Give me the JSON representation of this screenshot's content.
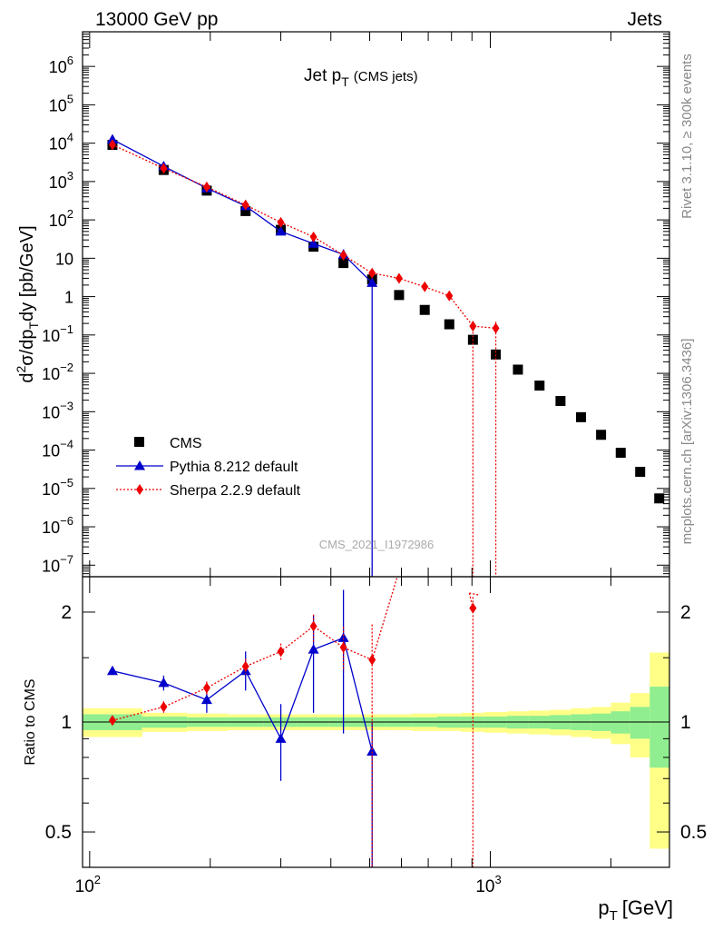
{
  "header": {
    "left": "13000 GeV pp",
    "right": "Jets"
  },
  "side": {
    "rivet": "Rivet 3.1.10, ≥ 300k events",
    "mcplots": "mcplots.cern.ch [arXiv:1306.3436]"
  },
  "analysis_id": "CMS_2021_I1972986",
  "colors": {
    "cms": "#000000",
    "pythia": "#0000cc",
    "sherpa": "#ee0000",
    "band_inner": "#90ee90",
    "band_outer": "#ffff88"
  },
  "chart_data": [
    {
      "type": "scatter",
      "title": "Jet pT (CMS jets)",
      "title_parts": {
        "main": "Jet p",
        "sub": "T",
        "suffix": "(CMS jets)"
      },
      "ylabel": "d2σ/dpTdy [pb/GeV]",
      "ylabel_parts": {
        "d": "d",
        "sup2": "2",
        "sigma": "σ/dp",
        "subT": "T",
        "dy": "dy [pb/GeV]"
      },
      "xscale": "log",
      "yscale": "log",
      "xlim": [
        96,
        2800
      ],
      "ylim": [
        5e-08,
        8000000.0
      ],
      "x_ticks": [
        {
          "value": 100,
          "base": "10",
          "exp": "2"
        },
        {
          "value": 1000,
          "base": "10",
          "exp": "3"
        }
      ],
      "y_ticks": [
        {
          "value": 1000000.0,
          "label": "10",
          "exp": "6"
        },
        {
          "value": 100000.0,
          "label": "10",
          "exp": "5"
        },
        {
          "value": 10000.0,
          "label": "10",
          "exp": "4"
        },
        {
          "value": 1000.0,
          "label": "10",
          "exp": "3"
        },
        {
          "value": 100.0,
          "label": "10",
          "exp": "2"
        },
        {
          "value": 10,
          "label": "10",
          "exp": ""
        },
        {
          "value": 1,
          "label": "1",
          "exp": ""
        },
        {
          "value": 0.1,
          "label": "10",
          "exp": "−1"
        },
        {
          "value": 0.01,
          "label": "10",
          "exp": "−2"
        },
        {
          "value": 0.001,
          "label": "10",
          "exp": "−3"
        },
        {
          "value": 0.0001,
          "label": "10",
          "exp": "−4"
        },
        {
          "value": 1e-05,
          "label": "10",
          "exp": "−5"
        },
        {
          "value": 1e-06,
          "label": "10",
          "exp": "−6"
        },
        {
          "value": 1e-07,
          "label": "10",
          "exp": "−7"
        }
      ],
      "legend": {
        "position": "bottom-left",
        "entries": [
          {
            "name": "CMS",
            "marker": "square"
          },
          {
            "name": "Pythia 8.212 default",
            "marker": "triangle"
          },
          {
            "name": "Sherpa 2.2.9 default",
            "marker": "diamond"
          }
        ]
      },
      "series": [
        {
          "name": "CMS",
          "marker": "square",
          "x": [
            114,
            153,
            196,
            245,
            300,
            362,
            430,
            507,
            592,
            686,
            790,
            905,
            1032,
            1172,
            1327,
            1497,
            1684,
            1890,
            2116,
            2366,
            2640
          ],
          "y": [
            9000,
            2000,
            580,
            170,
            55,
            20,
            7.5,
            2.8,
            1.1,
            0.45,
            0.19,
            0.075,
            0.031,
            0.0125,
            0.0048,
            0.0019,
            0.00072,
            0.00025,
            8.5e-05,
            2.7e-05,
            5.5e-06
          ]
        },
        {
          "name": "Pythia 8.212 default",
          "marker": "triangle",
          "x": [
            114,
            153,
            196,
            245,
            300,
            362,
            430,
            507
          ],
          "y": [
            12500,
            2500,
            670,
            230,
            50,
            24,
            12.5,
            2.3
          ],
          "y_low": [
            12000,
            2400,
            640,
            210,
            42,
            20,
            9,
            1e-09
          ],
          "y_high": [
            13000,
            2600,
            700,
            250,
            58,
            28,
            17,
            2.6
          ]
        },
        {
          "name": "Sherpa 2.2.9 default",
          "marker": "diamond",
          "x": [
            114,
            153,
            196,
            245,
            300,
            362,
            430,
            507,
            592,
            686,
            790,
            905,
            1032
          ],
          "y": [
            9100,
            2200,
            720,
            245,
            86,
            36,
            12,
            4.1,
            3.0,
            1.8,
            1.05,
            0.17,
            0.15
          ],
          "y_low": [
            8900,
            2150,
            700,
            235,
            82,
            33,
            10,
            3.5,
            2.8,
            1.6,
            0.9,
            1e-09,
            1e-09
          ],
          "y_high": [
            9300,
            2250,
            740,
            255,
            90,
            39,
            14,
            4.7,
            3.2,
            2.0,
            1.2,
            0.23,
            0.22
          ]
        }
      ]
    },
    {
      "type": "scatter",
      "ylabel": "Ratio to CMS",
      "xlabel": "pT [GeV]",
      "xlabel_parts": {
        "p": "p",
        "subT": "T",
        "unit": "[GeV]"
      },
      "xscale": "log",
      "yscale": "log",
      "xlim": [
        96,
        2800
      ],
      "ylim": [
        0.4,
        2.5
      ],
      "y_ticks": [
        {
          "value": 2,
          "label": "2"
        },
        {
          "value": 1,
          "label": "1"
        },
        {
          "value": 0.5,
          "label": "0.5"
        }
      ],
      "bands": {
        "edges": [
          96,
          135,
          175,
          220,
          272,
          330,
          395,
          467,
          548,
          638,
          737,
          846,
          967,
          1100,
          1247,
          1410,
          1589,
          1785,
          2000,
          2235,
          2500,
          2800
        ],
        "inner": [
          0.05,
          0.035,
          0.03,
          0.03,
          0.03,
          0.03,
          0.03,
          0.03,
          0.03,
          0.03,
          0.035,
          0.035,
          0.035,
          0.04,
          0.04,
          0.045,
          0.05,
          0.055,
          0.07,
          0.1,
          0.25
        ],
        "outer": [
          0.09,
          0.06,
          0.055,
          0.05,
          0.05,
          0.05,
          0.05,
          0.05,
          0.05,
          0.055,
          0.055,
          0.06,
          0.065,
          0.07,
          0.075,
          0.08,
          0.09,
          0.1,
          0.13,
          0.2,
          0.55
        ]
      },
      "series": [
        {
          "name": "Pythia 8.212 default",
          "marker": "triangle",
          "x": [
            114,
            153,
            196,
            245,
            300,
            362,
            430,
            507
          ],
          "y": [
            1.38,
            1.28,
            1.15,
            1.38,
            0.9,
            1.58,
            1.7,
            0.83
          ],
          "y_low": [
            1.36,
            1.22,
            1.06,
            1.22,
            0.69,
            1.06,
            0.93,
            0.3
          ],
          "y_high": [
            1.4,
            1.34,
            1.24,
            1.56,
            1.12,
            1.96,
            2.3,
            1.0
          ]
        },
        {
          "name": "Sherpa 2.2.9 default",
          "marker": "diamond",
          "x": [
            114,
            153,
            196,
            245,
            300,
            362,
            430,
            507,
            905
          ],
          "y": [
            1.01,
            1.1,
            1.24,
            1.42,
            1.56,
            1.83,
            1.6,
            1.48,
            2.05
          ],
          "y_low": [
            0.99,
            1.06,
            1.19,
            1.35,
            1.48,
            1.66,
            1.38,
            0.3,
            0.3
          ],
          "y_high": [
            1.03,
            1.14,
            1.29,
            1.49,
            1.64,
            1.97,
            1.82,
            1.85,
            2.2
          ],
          "off_scale_after": 507
        }
      ]
    }
  ]
}
